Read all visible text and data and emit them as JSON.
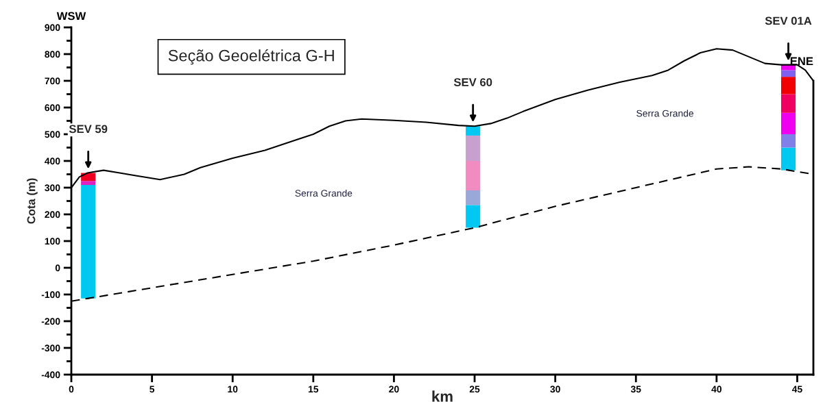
{
  "chart_data": {
    "type": "line",
    "title": "Seção Geoelétrica G-H",
    "xlabel": "km",
    "ylabel": "Cota (m)",
    "xlim": [
      0,
      46
    ],
    "ylim": [
      -400,
      900
    ],
    "xticks": [
      0,
      5,
      10,
      15,
      20,
      25,
      30,
      35,
      40,
      45
    ],
    "yticks": [
      -400,
      {
        "value": -350,
        "label": null
      },
      -300,
      {
        "value": -250,
        "label": null
      },
      -200,
      {
        "value": -150,
        "label": null
      },
      -100,
      {
        "value": -50,
        "label": null
      },
      0,
      {
        "value": 50,
        "label": null
      },
      100,
      {
        "value": 150,
        "label": null
      },
      200,
      {
        "value": 250,
        "label": null
      },
      300,
      {
        "value": 350,
        "label": null
      },
      400,
      {
        "value": 450,
        "label": null
      },
      500,
      {
        "value": 550,
        "label": null
      },
      600,
      {
        "value": 650,
        "label": null
      },
      700,
      {
        "value": 750,
        "label": null
      },
      800,
      {
        "value": 850,
        "label": null
      },
      900
    ],
    "grid": false,
    "series": [
      {
        "color": "#000000",
        "line_style": "solid",
        "x": [
          0,
          0.5,
          1,
          2,
          3,
          4,
          5.5,
          7,
          8,
          10,
          12,
          14,
          15,
          16,
          17,
          18,
          20,
          22,
          24,
          25,
          26,
          27,
          28,
          30,
          32,
          34,
          36,
          37,
          38,
          39,
          40,
          41,
          42,
          43,
          44,
          45,
          45.5,
          46
        ],
        "values": [
          300,
          340,
          355,
          365,
          355,
          345,
          330,
          350,
          375,
          410,
          440,
          480,
          500,
          530,
          550,
          557,
          552,
          545,
          533,
          530,
          540,
          560,
          585,
          630,
          665,
          695,
          720,
          740,
          775,
          805,
          820,
          815,
          790,
          765,
          760,
          760,
          740,
          700
        ]
      },
      {
        "color": "#000000",
        "line_style": "dashed",
        "x": [
          0,
          1,
          5,
          10,
          15,
          20,
          25,
          30,
          35,
          40,
          42,
          44,
          46
        ],
        "values": [
          -125,
          -115,
          -75,
          -25,
          25,
          85,
          150,
          230,
          300,
          370,
          378,
          370,
          350
        ]
      },
      {
        "type": "bar",
        "x": [
          1.05
        ],
        "base": [
          -115
        ],
        "values": [
          425
        ],
        "color": "#00c8f0"
      },
      {
        "type": "bar",
        "x": [
          1.05
        ],
        "base": [
          310
        ],
        "values": [
          15
        ],
        "color": "#e020c0"
      },
      {
        "type": "bar",
        "x": [
          1.05
        ],
        "base": [
          325
        ],
        "values": [
          30
        ],
        "color": "#f00020"
      },
      {
        "type": "bar",
        "x": [
          24.9
        ],
        "base": [
          150
        ],
        "values": [
          85
        ],
        "color": "#00c8f0"
      },
      {
        "type": "bar",
        "x": [
          24.9
        ],
        "base": [
          235
        ],
        "values": [
          55
        ],
        "color": "#9aa8d8"
      },
      {
        "type": "bar",
        "x": [
          24.9
        ],
        "base": [
          290
        ],
        "values": [
          110
        ],
        "color": "#f08cc0"
      },
      {
        "type": "bar",
        "x": [
          24.9
        ],
        "base": [
          400
        ],
        "values": [
          95
        ],
        "color": "#c8a0d0"
      },
      {
        "type": "bar",
        "x": [
          24.9
        ],
        "base": [
          495
        ],
        "values": [
          35
        ],
        "color": "#00c8f0"
      },
      {
        "type": "bar",
        "x": [
          44.45
        ],
        "base": [
          365
        ],
        "values": [
          85
        ],
        "color": "#00c8f0"
      },
      {
        "type": "bar",
        "x": [
          44.45
        ],
        "base": [
          450
        ],
        "values": [
          50
        ],
        "color": "#8080e8"
      },
      {
        "type": "bar",
        "x": [
          44.45
        ],
        "base": [
          500
        ],
        "values": [
          80
        ],
        "color": "#f000f0"
      },
      {
        "type": "bar",
        "x": [
          44.45
        ],
        "base": [
          580
        ],
        "values": [
          70
        ],
        "color": "#f00060"
      },
      {
        "type": "bar",
        "x": [
          44.45
        ],
        "base": [
          650
        ],
        "values": [
          65
        ],
        "color": "#f00000"
      },
      {
        "type": "bar",
        "x": [
          44.45
        ],
        "base": [
          715
        ],
        "values": [
          25
        ],
        "color": "#8060f0"
      },
      {
        "type": "bar",
        "x": [
          44.45
        ],
        "base": [
          740
        ],
        "values": [
          20
        ],
        "color": "#f000f0"
      }
    ],
    "annotations": [
      "WSW",
      "ENE",
      "SEV 59",
      "SEV 60",
      "SEV 01A",
      "Serra Grande",
      "Serra Grande"
    ]
  }
}
